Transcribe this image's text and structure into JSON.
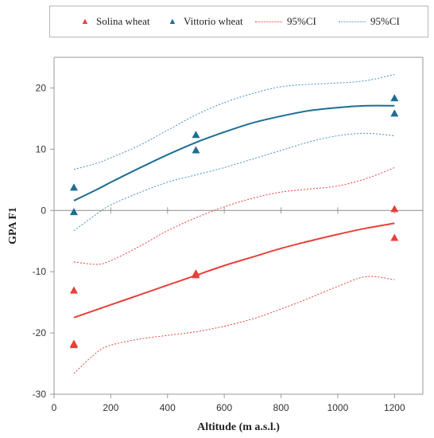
{
  "chart_data": {
    "type": "scatter",
    "title": "",
    "xlabel": "Altitude  (m a.s.l.)",
    "ylabel": "GPA F1",
    "xlim": [
      0,
      1300
    ],
    "ylim": [
      -30,
      25
    ],
    "x_ticks": [
      0,
      200,
      400,
      600,
      800,
      1000,
      1200
    ],
    "y_ticks": [
      -30,
      -20,
      -10,
      0,
      10,
      20
    ],
    "grid": false,
    "legend_position": "top",
    "series": [
      {
        "name": "Solina wheat",
        "color": "#e8403a",
        "marker": "triangle",
        "points": [
          [
            70,
            -13.1
          ],
          [
            70,
            -21.8
          ],
          [
            70,
            -22.0
          ],
          [
            500,
            -10.3
          ],
          [
            500,
            -10.6
          ],
          [
            1200,
            0.2
          ],
          [
            1200,
            -4.5
          ]
        ],
        "fit": [
          [
            70,
            -17.5
          ],
          [
            200,
            -15.4
          ],
          [
            300,
            -13.8
          ],
          [
            400,
            -12.2
          ],
          [
            500,
            -10.6
          ],
          [
            600,
            -9.0
          ],
          [
            700,
            -7.6
          ],
          [
            800,
            -6.2
          ],
          [
            900,
            -5.0
          ],
          [
            1000,
            -3.9
          ],
          [
            1100,
            -2.9
          ],
          [
            1200,
            -2.1
          ]
        ],
        "ci_upper": [
          [
            70,
            -8.4
          ],
          [
            150,
            -8.8
          ],
          [
            200,
            -8.2
          ],
          [
            300,
            -5.9
          ],
          [
            400,
            -3.3
          ],
          [
            500,
            -1.2
          ],
          [
            600,
            0.6
          ],
          [
            700,
            2.0
          ],
          [
            800,
            3.0
          ],
          [
            900,
            3.5
          ],
          [
            1000,
            4.0
          ],
          [
            1100,
            5.2
          ],
          [
            1200,
            7.0
          ]
        ],
        "ci_lower": [
          [
            70,
            -26.6
          ],
          [
            150,
            -23.2
          ],
          [
            200,
            -22.0
          ],
          [
            300,
            -21.0
          ],
          [
            400,
            -20.4
          ],
          [
            500,
            -19.8
          ],
          [
            600,
            -18.9
          ],
          [
            700,
            -17.7
          ],
          [
            800,
            -16.1
          ],
          [
            900,
            -14.3
          ],
          [
            1000,
            -12.4
          ],
          [
            1100,
            -10.8
          ],
          [
            1200,
            -11.3
          ]
        ]
      },
      {
        "name": "Vittorio wheat",
        "color": "#1f6d93",
        "marker": "triangle",
        "points": [
          [
            70,
            3.7
          ],
          [
            70,
            -0.3
          ],
          [
            500,
            12.3
          ],
          [
            500,
            9.8
          ],
          [
            1200,
            18.3
          ],
          [
            1200,
            15.8
          ]
        ],
        "fit": [
          [
            70,
            1.6
          ],
          [
            150,
            3.4
          ],
          [
            200,
            4.6
          ],
          [
            300,
            6.9
          ],
          [
            400,
            9.1
          ],
          [
            500,
            11.1
          ],
          [
            600,
            12.8
          ],
          [
            700,
            14.3
          ],
          [
            800,
            15.4
          ],
          [
            900,
            16.3
          ],
          [
            1000,
            16.8
          ],
          [
            1100,
            17.1
          ],
          [
            1200,
            17.1
          ]
        ],
        "ci_upper": [
          [
            70,
            6.7
          ],
          [
            150,
            7.7
          ],
          [
            200,
            8.6
          ],
          [
            300,
            10.6
          ],
          [
            400,
            13.1
          ],
          [
            500,
            15.6
          ],
          [
            600,
            17.6
          ],
          [
            700,
            19.1
          ],
          [
            800,
            20.2
          ],
          [
            900,
            20.6
          ],
          [
            1000,
            20.8
          ],
          [
            1100,
            21.2
          ],
          [
            1200,
            22.2
          ]
        ],
        "ci_lower": [
          [
            70,
            -3.3
          ],
          [
            150,
            -0.6
          ],
          [
            200,
            0.9
          ],
          [
            300,
            2.9
          ],
          [
            400,
            4.6
          ],
          [
            500,
            5.8
          ],
          [
            600,
            7.0
          ],
          [
            700,
            8.4
          ],
          [
            800,
            9.8
          ],
          [
            900,
            11.2
          ],
          [
            1000,
            12.2
          ],
          [
            1100,
            12.6
          ],
          [
            1200,
            12.2
          ]
        ]
      }
    ],
    "legend": [
      {
        "label": "Solina wheat",
        "kind": "marker",
        "color": "#e8403a"
      },
      {
        "label": "Vittorio wheat",
        "kind": "marker",
        "color": "#1f6d93"
      },
      {
        "label": "95%CI",
        "kind": "dotted-line",
        "color": "#e8403a"
      },
      {
        "label": "95%CI",
        "kind": "dotted-line",
        "color": "#4a8ec2"
      }
    ],
    "ci_colors": {
      "solina": "#e8403a",
      "vittorio": "#4a8ec2"
    },
    "axis_color": "#9a9a9a"
  }
}
